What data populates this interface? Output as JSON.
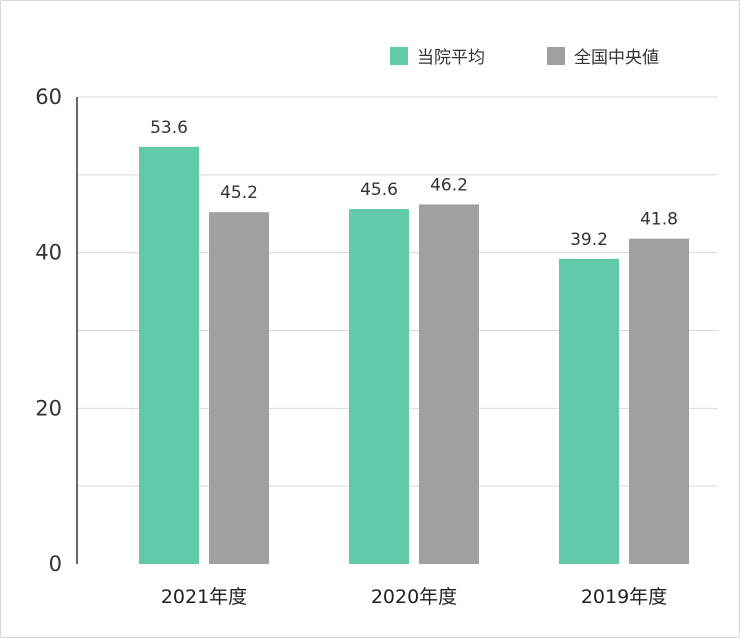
{
  "chart_data": {
    "type": "bar",
    "categories": [
      "2021年度",
      "2020年度",
      "2019年度"
    ],
    "series": [
      {
        "name": "当院平均",
        "values": [
          53.6,
          45.6,
          39.2
        ],
        "color": "#62c9a9"
      },
      {
        "name": "全国中央値",
        "values": [
          45.2,
          46.2,
          41.8
        ],
        "color": "#a0a0a0"
      }
    ],
    "yticks": [
      0,
      20,
      40,
      60
    ],
    "ylim": [
      0,
      60
    ],
    "grid": true,
    "legend_position": "top-right",
    "data_labels": true
  }
}
